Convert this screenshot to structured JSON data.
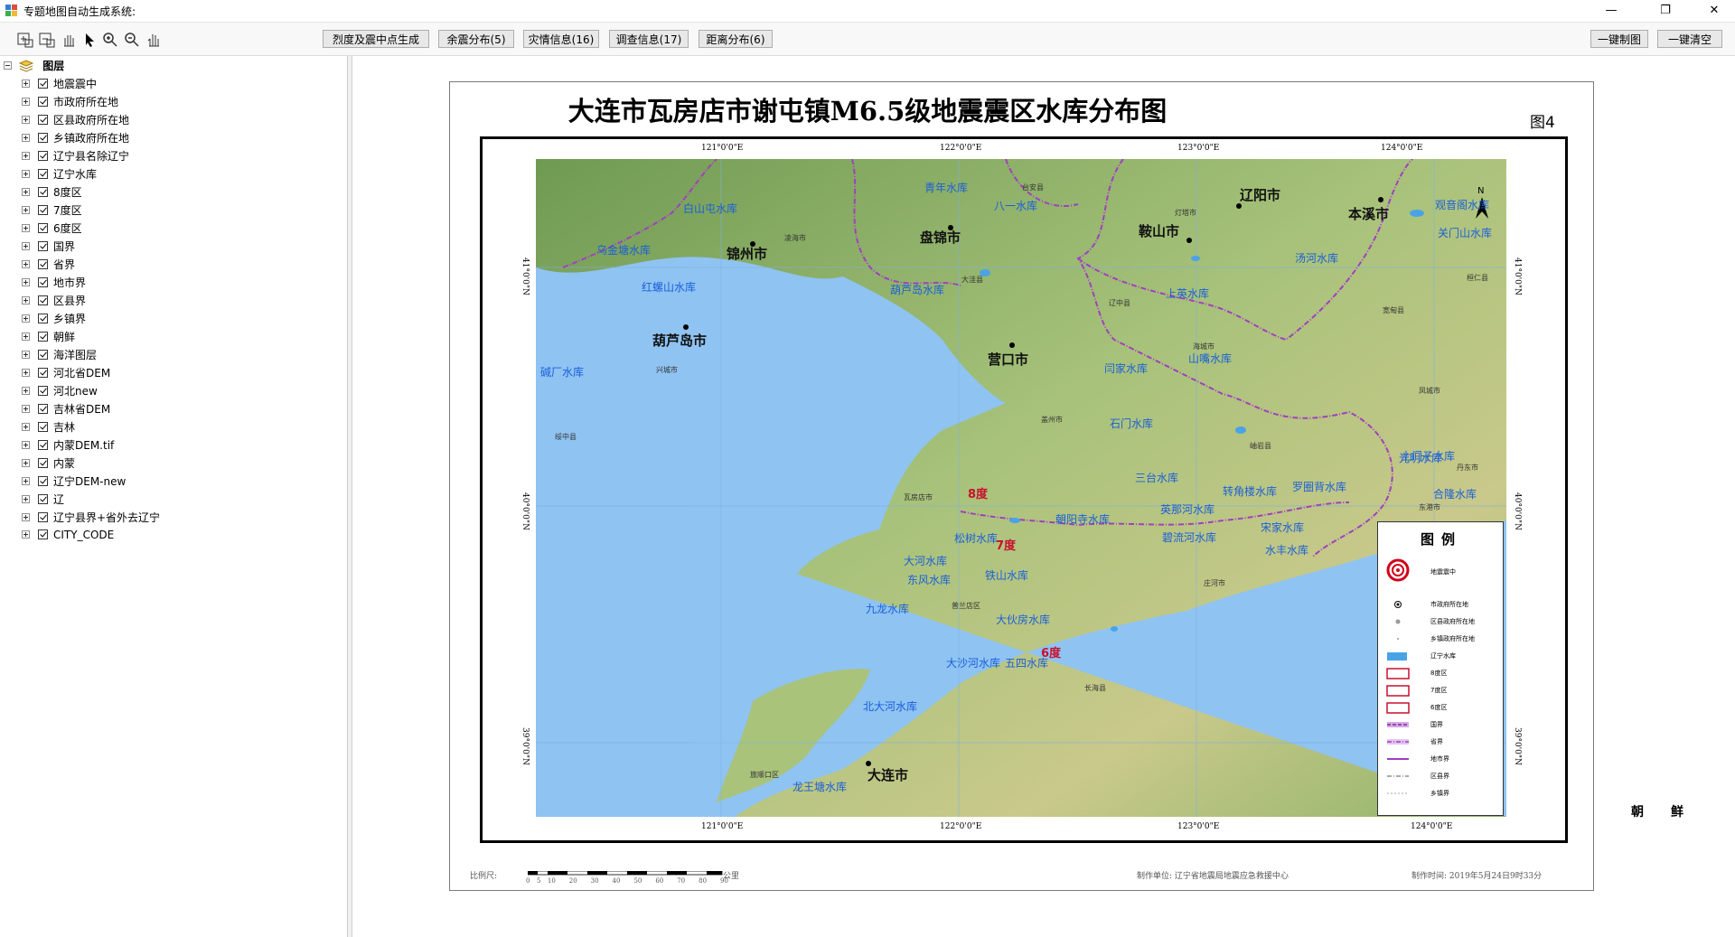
{
  "window": {
    "title": "专题地图自动生成系统:",
    "minimize": "—",
    "restore": "❐",
    "close": "✕"
  },
  "toolbar": {
    "tools": [
      "add-data-icon",
      "remove-data-icon",
      "pan-hand-icon",
      "select-arrow-icon",
      "zoom-in-icon",
      "zoom-out-icon",
      "pan-icon"
    ],
    "buttons": {
      "intensity": "烈度及震中点生成",
      "aftershock": "余震分布(5)",
      "disaster": "灾情信息(16)",
      "survey": "调查信息(17)",
      "distance": "距离分布(6)",
      "make_map": "一键制图",
      "clear": "一键清空"
    }
  },
  "toc": {
    "root": "图层",
    "layers": [
      "地震震中",
      "市政府所在地",
      "区县政府所在地",
      "乡镇政府所在地",
      "辽宁县名除辽宁",
      "辽宁水库",
      "8度区",
      "7度区",
      "6度区",
      "国界",
      "省界",
      "地市界",
      "区县界",
      "乡镇界",
      "朝鲜",
      "海洋图层",
      "河北省DEM",
      "河北new",
      "吉林省DEM",
      "吉林",
      "内蒙DEM.tif",
      "内蒙",
      "辽宁DEM-new",
      "辽",
      "辽宁县界+省外去辽宁",
      "CITY_CODE"
    ]
  },
  "map": {
    "title": "大连市瓦房店市谢屯镇M6.5级地震震区水库分布图",
    "figure_label": "图4",
    "lon_top": [
      "121°0'0\"E",
      "122°0'0\"E",
      "123°0'0\"E",
      "124°0'0\"E"
    ],
    "lon_bottom": [
      "121°0'0\"E",
      "122°0'0\"E",
      "123°0'0\"E",
      "124°0'0\"E"
    ],
    "lat_left": [
      "41°0'0\"N",
      "40°0'0\"N",
      "39°0'0\"N"
    ],
    "lat_right": [
      "41°0'0\"N",
      "40°0'0\"N",
      "39°0'0\"N"
    ],
    "cities": {
      "jinzhou": "锦州市",
      "panjin": "盘锦市",
      "anshan": "鞍山市",
      "liaoyang": "辽阳市",
      "benxi": "本溪市",
      "huludao": "葫芦岛市",
      "yingkou": "营口市",
      "dalian": "大连市"
    },
    "reservoirs": [
      "青年水库",
      "八一水库",
      "观音阁水库",
      "白山屯水库",
      "乌金塘水库",
      "关门山水库",
      "汤河水库",
      "红螺山水库",
      "葫芦岛水库",
      "上英水库",
      "碱厂水库",
      "闫家水库",
      "山嘴水库",
      "石门水库",
      "三台水库",
      "大河水库",
      "光明水库",
      "英那河水库",
      "朝阳寺水库",
      "宋家水库",
      "松树水库",
      "东风水库",
      "碧流河水库",
      "转角楼水库",
      "罗圈背水库",
      "大伙房水库",
      "铁山水库",
      "九龙水库",
      "大沙河水库",
      "北大河水库",
      "五四水库",
      "龙王塘水库",
      "土门子水库",
      "合隆水库",
      "水丰水库"
    ],
    "degrees": {
      "d8": "8度",
      "d7": "7度",
      "d6": "6度"
    },
    "small_labels": [
      "凌海市",
      "台安县",
      "大洼县",
      "辽中县",
      "海城市",
      "岫岩县",
      "庄河市",
      "长海县",
      "旅顺口区",
      "普兰店区",
      "瓦房店市",
      "盖州市",
      "兴城市",
      "绥中县",
      "凤城市",
      "宽甸县",
      "东港市",
      "丹东市",
      "桓仁县",
      "灯塔市"
    ],
    "legend": {
      "title": "图例",
      "items": [
        "地震震中",
        "市政府所在地",
        "区县政府所在地",
        "乡镇政府所在地",
        "辽宁水库",
        "8度区",
        "7度区",
        "6度区",
        "国界",
        "省界",
        "地市界",
        "区县界",
        "乡镇界"
      ]
    },
    "korea": "朝鲜",
    "footer": {
      "scale_label": "比例尺:",
      "scale_ticks": [
        "0",
        "5",
        "10",
        "20",
        "30",
        "40",
        "50",
        "60",
        "70",
        "80",
        "90"
      ],
      "scale_unit": "公里",
      "producer": "制作单位: 辽宁省地震局地震应急救援中心",
      "time": "制作时间: 2019年5月24日9时33分"
    }
  },
  "colors": {
    "sea": "#8fc3f2",
    "land": "#8fb46a",
    "boundary": "#9b59b6",
    "reservoir_text": "#1a5fd9",
    "degree_text": "#c8102e"
  }
}
